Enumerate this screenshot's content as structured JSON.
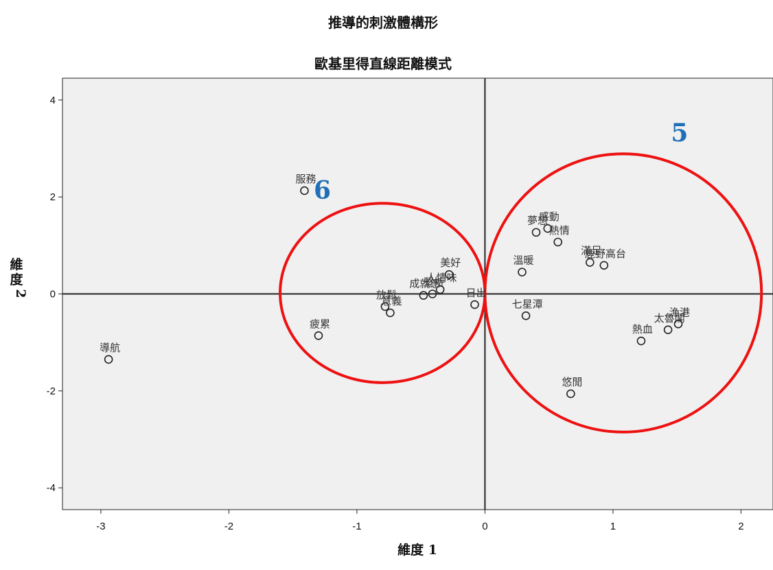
{
  "chart_data": {
    "type": "scatter",
    "title": "推導的刺激體構形",
    "subtitle": "歐基里得直線距離模式",
    "xlabel": "維度 1",
    "ylabel": "維度 2",
    "xlim": [
      -3.3,
      2.25
    ],
    "ylim": [
      -4.45,
      4.45
    ],
    "x_ticks": [
      -3,
      -2,
      -1,
      0,
      1,
      2
    ],
    "y_ticks": [
      -4,
      -2,
      0,
      2,
      4
    ],
    "grid": false,
    "plot_background": "#f0f0f0",
    "marker_color": "#222222",
    "points": [
      {
        "label": "服務",
        "x": -1.41,
        "y": 2.13
      },
      {
        "label": "導航",
        "x": -2.94,
        "y": -1.35
      },
      {
        "label": "疲累",
        "x": -1.3,
        "y": -0.86
      },
      {
        "label": "放鬆",
        "x": -0.78,
        "y": -0.26
      },
      {
        "label": "意義",
        "x": -0.74,
        "y": -0.39
      },
      {
        "label": "成就感",
        "x": -0.48,
        "y": -0.03
      },
      {
        "label": "堅持",
        "x": -0.41,
        "y": 0.0
      },
      {
        "label": "人情味",
        "x": -0.35,
        "y": 0.09
      },
      {
        "label": "美好",
        "x": -0.28,
        "y": 0.4
      },
      {
        "label": "日出",
        "x": -0.08,
        "y": -0.22
      },
      {
        "label": "溫暖",
        "x": 0.29,
        "y": 0.45
      },
      {
        "label": "七星潭",
        "x": 0.32,
        "y": -0.45
      },
      {
        "label": "夢想",
        "x": 0.4,
        "y": 1.27
      },
      {
        "label": "感動",
        "x": 0.49,
        "y": 1.35
      },
      {
        "label": "熱情",
        "x": 0.57,
        "y": 1.07
      },
      {
        "label": "滿足",
        "x": 0.82,
        "y": 0.65
      },
      {
        "label": "鹿野高台",
        "x": 0.93,
        "y": 0.59
      },
      {
        "label": "悠閒",
        "x": 0.67,
        "y": -2.06
      },
      {
        "label": "熱血",
        "x": 1.22,
        "y": -0.97
      },
      {
        "label": "太魯閣",
        "x": 1.43,
        "y": -0.74
      },
      {
        "label": "漁港",
        "x": 1.51,
        "y": -0.62
      }
    ],
    "annotations": [
      {
        "text": "5",
        "color": "#1f6fb8",
        "x": 1.52,
        "y": 3.15
      },
      {
        "text": "6",
        "color": "#1f6fb8",
        "x": -1.27,
        "y": 1.97
      }
    ],
    "cluster_circles": [
      {
        "cx": -0.8,
        "cy": 0.02,
        "rx": 0.8,
        "ry": 1.85,
        "color": "#ee1111"
      },
      {
        "cx": 1.08,
        "cy": 0.02,
        "rx": 1.08,
        "ry": 2.87,
        "color": "#ee1111"
      }
    ]
  }
}
